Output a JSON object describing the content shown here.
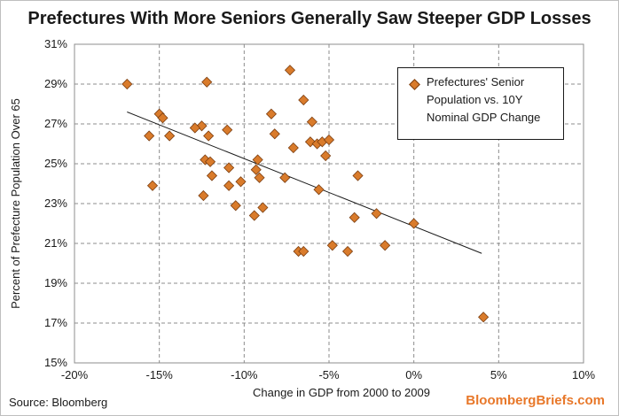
{
  "chart_data": {
    "type": "scatter",
    "title": "Prefectures With More Seniors Generally Saw Steeper GDP Losses",
    "xlabel": "Change in GDP from 2000 to 2009",
    "ylabel": "Percent of Prefecture Population Over 65",
    "xlim": [
      -20,
      10
    ],
    "ylim": [
      15,
      31
    ],
    "xticks": [
      -20,
      -15,
      -10,
      -5,
      0,
      5,
      10
    ],
    "yticks": [
      15,
      17,
      19,
      21,
      23,
      25,
      27,
      29,
      31
    ],
    "xtick_labels": [
      "-20%",
      "-15%",
      "-10%",
      "-5%",
      "0%",
      "5%",
      "10%"
    ],
    "ytick_labels": [
      "15%",
      "17%",
      "19%",
      "21%",
      "23%",
      "25%",
      "27%",
      "29%",
      "31%"
    ],
    "grid": true,
    "legend": {
      "position": "top-right",
      "label": "Prefectures' Senior Population vs. 10Y Nominal GDP Change"
    },
    "marker_color": "#d97b2b",
    "marker_edge_color": "#7a3d10",
    "trendline": {
      "x": [
        -16.9,
        4.0
      ],
      "y": [
        27.6,
        20.5
      ]
    },
    "series": [
      {
        "name": "Prefectures' Senior Population vs. 10Y Nominal GDP Change",
        "points": [
          [
            -16.9,
            29.0
          ],
          [
            -12.2,
            29.1
          ],
          [
            -7.3,
            29.7
          ],
          [
            -6.5,
            28.2
          ],
          [
            -8.4,
            27.5
          ],
          [
            -6.0,
            27.1
          ],
          [
            -15.0,
            27.5
          ],
          [
            -14.8,
            27.3
          ],
          [
            -11.0,
            26.7
          ],
          [
            -12.5,
            26.9
          ],
          [
            -12.9,
            26.8
          ],
          [
            -15.6,
            26.4
          ],
          [
            -14.4,
            26.4
          ],
          [
            -12.1,
            26.4
          ],
          [
            -8.2,
            26.5
          ],
          [
            -6.1,
            26.1
          ],
          [
            -5.7,
            26.0
          ],
          [
            -5.4,
            26.1
          ],
          [
            -5.0,
            26.2
          ],
          [
            -7.1,
            25.8
          ],
          [
            -5.2,
            25.4
          ],
          [
            -12.3,
            25.2
          ],
          [
            -12.0,
            25.1
          ],
          [
            -10.9,
            24.8
          ],
          [
            -9.2,
            25.2
          ],
          [
            -9.3,
            24.7
          ],
          [
            -10.2,
            24.1
          ],
          [
            -9.1,
            24.3
          ],
          [
            -11.9,
            24.4
          ],
          [
            -7.6,
            24.3
          ],
          [
            -15.4,
            23.9
          ],
          [
            -10.9,
            23.9
          ],
          [
            -12.4,
            23.4
          ],
          [
            -5.6,
            23.7
          ],
          [
            -3.3,
            24.4
          ],
          [
            -10.5,
            22.9
          ],
          [
            -9.4,
            22.4
          ],
          [
            -8.9,
            22.8
          ],
          [
            -3.5,
            22.3
          ],
          [
            -2.2,
            22.5
          ],
          [
            0.0,
            22.0
          ],
          [
            -6.8,
            20.6
          ],
          [
            -6.5,
            20.6
          ],
          [
            -4.8,
            20.9
          ],
          [
            -3.9,
            20.6
          ],
          [
            -1.7,
            20.9
          ],
          [
            4.1,
            17.3
          ]
        ]
      }
    ]
  },
  "footer": {
    "source": "Source: Bloomberg",
    "brand": "BloombergBriefs.com"
  }
}
